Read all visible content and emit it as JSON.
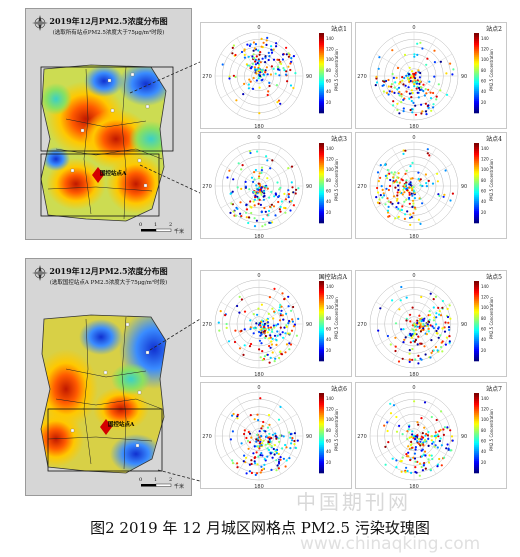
{
  "caption": "图2 2019 年 12 月城区网格点 PM2.5 污染玫瑰图",
  "watermark_cn": "中国期刊网",
  "watermark_url": "www.chinaqking.com",
  "maps": [
    {
      "title": "2019年12月PM2.5浓度分布图",
      "subtitle": "(选取所有站点PM2.5浓度大于75μg/m³时段)",
      "scale": [
        "0",
        "1",
        "2",
        "千米"
      ],
      "control_label": "国控站点A"
    },
    {
      "title": "2019年12月PM2.5浓度分布图",
      "subtitle": "(选取国控站点A PM2.5浓度大于75μg/m³时段)",
      "scale": [
        "0",
        "1",
        "2",
        "千米"
      ],
      "control_label": "国控站点A"
    }
  ],
  "roses": [
    {
      "label": "站点1",
      "colorbar_title": "PM2.5 Concentration"
    },
    {
      "label": "站点2",
      "colorbar_title": "PM2.5 Concentration"
    },
    {
      "label": "站点3",
      "colorbar_title": "PM2.5 Concentration"
    },
    {
      "label": "站点4",
      "colorbar_title": "PM2.5 Concentration"
    },
    {
      "label": "国控站点A",
      "colorbar_title": "PM2.5 Concentration"
    },
    {
      "label": "站点5",
      "colorbar_title": "PM2.5 Concentration"
    },
    {
      "label": "站点6",
      "colorbar_title": "PM2.5 Concentration"
    },
    {
      "label": "站点7",
      "colorbar_title": "PM2.5 Concentration"
    }
  ],
  "chart_data": {
    "type": "scatter",
    "coordinate_system": "polar",
    "angle_ticks": [
      "0",
      "90",
      "180",
      "270"
    ],
    "radial_ticks": [
      "2.5",
      "5",
      "7.5"
    ],
    "colorbar": {
      "ticks": [
        20,
        40,
        60,
        80,
        100,
        120,
        140
      ],
      "range": [
        0,
        150
      ],
      "colormap": "jet"
    },
    "legend_placement": "colorbar-right"
  }
}
